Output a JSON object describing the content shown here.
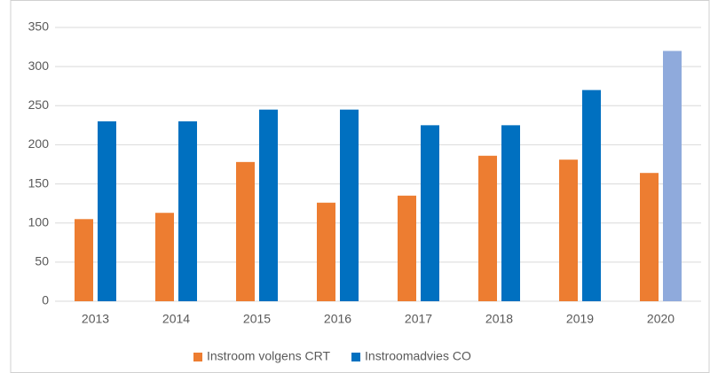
{
  "chart_data": {
    "type": "bar",
    "categories": [
      "2013",
      "2014",
      "2015",
      "2016",
      "2017",
      "2018",
      "2019",
      "2020"
    ],
    "series": [
      {
        "name": "Instroom volgens CRT",
        "color": "#ed7d31",
        "values": [
          105,
          113,
          178,
          126,
          135,
          186,
          181,
          164
        ]
      },
      {
        "name": "Instroomadvies CO",
        "color": "#0070c0",
        "values": [
          230,
          230,
          245,
          245,
          225,
          225,
          270,
          320
        ],
        "colors": [
          "#0070c0",
          "#0070c0",
          "#0070c0",
          "#0070c0",
          "#0070c0",
          "#0070c0",
          "#0070c0",
          "#8faadc"
        ]
      }
    ],
    "ylim": [
      0,
      350
    ],
    "yticks": [
      0,
      50,
      100,
      150,
      200,
      250,
      300,
      350
    ],
    "grid": true,
    "legend": "bottom"
  }
}
